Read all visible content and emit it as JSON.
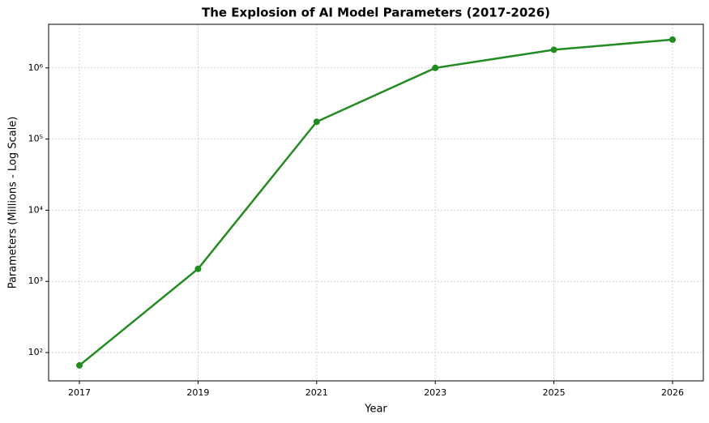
{
  "chart_data": {
    "type": "line",
    "title": "The Explosion of AI Model Parameters (2017-2026)",
    "x_label": "Year",
    "y_label": "Parameters (Millions - Log Scale)",
    "categories": [
      "2017",
      "2019",
      "2021",
      "2023",
      "2025",
      "2026"
    ],
    "series": [
      {
        "name": "Parameters",
        "color": "#228b22",
        "values": [
          66,
          1500,
          175000,
          1000000,
          1800000,
          2500000
        ]
      }
    ],
    "ylim": [
      40,
      4100000
    ],
    "yticks": [
      {
        "value": 100,
        "label": "10²"
      },
      {
        "value": 1000,
        "label": "10³"
      },
      {
        "value": 10000,
        "label": "10⁴"
      },
      {
        "value": 100000,
        "label": "10⁵"
      },
      {
        "value": 1000000,
        "label": "10⁶"
      }
    ],
    "log_y": true,
    "grid": true
  }
}
